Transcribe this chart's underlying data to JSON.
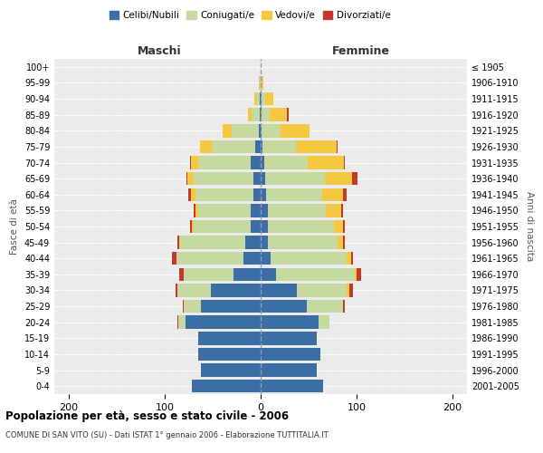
{
  "age_groups": [
    "0-4",
    "5-9",
    "10-14",
    "15-19",
    "20-24",
    "25-29",
    "30-34",
    "35-39",
    "40-44",
    "45-49",
    "50-54",
    "55-59",
    "60-64",
    "65-69",
    "70-74",
    "75-79",
    "80-84",
    "85-89",
    "90-94",
    "95-99",
    "100+"
  ],
  "birth_years": [
    "2001-2005",
    "1996-2000",
    "1991-1995",
    "1986-1990",
    "1981-1985",
    "1976-1980",
    "1971-1975",
    "1966-1970",
    "1961-1965",
    "1956-1960",
    "1951-1955",
    "1946-1950",
    "1941-1945",
    "1936-1940",
    "1931-1935",
    "1926-1930",
    "1921-1925",
    "1916-1920",
    "1911-1915",
    "1906-1910",
    "≤ 1905"
  ],
  "males": {
    "celibe": [
      72,
      62,
      65,
      65,
      78,
      62,
      52,
      28,
      18,
      16,
      10,
      10,
      8,
      8,
      10,
      6,
      2,
      1,
      1,
      0,
      0
    ],
    "coniugato": [
      0,
      0,
      0,
      0,
      8,
      18,
      35,
      52,
      70,
      68,
      60,
      55,
      60,
      62,
      55,
      45,
      28,
      8,
      3,
      1,
      0
    ],
    "vedovo": [
      0,
      0,
      0,
      0,
      0,
      0,
      0,
      0,
      0,
      1,
      2,
      3,
      5,
      6,
      8,
      12,
      10,
      4,
      3,
      1,
      0
    ],
    "divorziato": [
      0,
      0,
      0,
      0,
      1,
      1,
      2,
      5,
      4,
      2,
      2,
      2,
      2,
      1,
      1,
      0,
      0,
      0,
      0,
      0,
      0
    ]
  },
  "females": {
    "nubile": [
      65,
      58,
      62,
      58,
      60,
      48,
      38,
      16,
      10,
      8,
      8,
      8,
      6,
      5,
      4,
      2,
      1,
      1,
      1,
      0,
      0
    ],
    "coniugata": [
      0,
      0,
      0,
      0,
      12,
      38,
      52,
      82,
      80,
      72,
      68,
      60,
      58,
      62,
      45,
      35,
      20,
      8,
      4,
      1,
      0
    ],
    "vedova": [
      0,
      0,
      0,
      0,
      0,
      0,
      2,
      2,
      4,
      6,
      10,
      16,
      22,
      28,
      38,
      42,
      30,
      18,
      8,
      2,
      0
    ],
    "divorziata": [
      0,
      0,
      0,
      0,
      0,
      2,
      4,
      5,
      2,
      2,
      2,
      2,
      4,
      6,
      1,
      1,
      0,
      2,
      0,
      0,
      0
    ]
  },
  "colors": {
    "celibe": "#3a6ea5",
    "coniugato": "#c5d9a0",
    "vedovo": "#f5c842",
    "divorziato": "#c0392b"
  },
  "xlim": [
    -215,
    215
  ],
  "xticks": [
    -200,
    -100,
    0,
    100,
    200
  ],
  "xticklabels": [
    "200",
    "100",
    "0",
    "100",
    "200"
  ],
  "title": "Popolazione per età, sesso e stato civile - 2006",
  "subtitle": "COMUNE DI SAN VITO (SU) - Dati ISTAT 1° gennaio 2006 - Elaborazione TUTTITALIA.IT",
  "ylabel_left": "Fasce di età",
  "ylabel_right": "Anni di nascita",
  "label_maschi": "Maschi",
  "label_femmine": "Femmine",
  "legend_labels": [
    "Celibi/Nubili",
    "Coniugati/e",
    "Vedovi/e",
    "Divorziati/e"
  ],
  "bg_color": "#ebebeb",
  "bar_height": 0.82
}
